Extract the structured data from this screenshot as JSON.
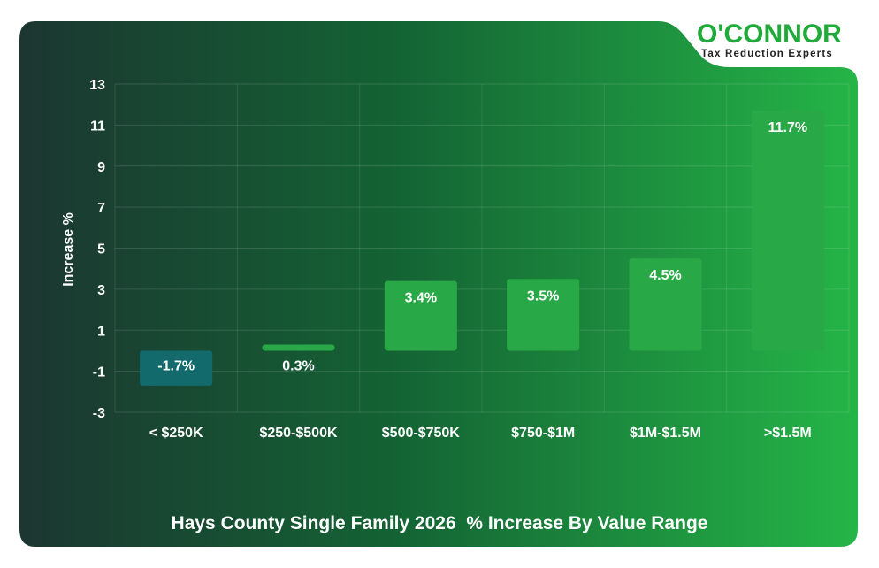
{
  "brand": {
    "name_part1": "O'C",
    "name_part2": "NNOR",
    "tagline": "Tax Reduction Experts",
    "color": "#1faa3a"
  },
  "colors": {
    "bg_dark": "#1d3a33",
    "bg_mid": "#13673a",
    "bg_light": "#24b347",
    "bar_positive": "#29a847",
    "bar_negative": "#136a6c",
    "text": "#ffffff"
  },
  "chart_data": {
    "type": "bar",
    "title": "Hays County Single Family 2026  % Increase By Value Range",
    "xlabel": "",
    "ylabel": "Increase %",
    "categories": [
      "< $250K",
      "$250-$500K",
      "$500-$750K",
      "$750-$1M",
      "$1M-$1.5M",
      ">$1.5M"
    ],
    "values": [
      -1.7,
      0.3,
      3.4,
      3.5,
      4.5,
      11.7
    ],
    "data_labels": [
      "-1.7%",
      "0.3%",
      "3.4%",
      "3.5%",
      "4.5%",
      "11.7%"
    ],
    "ylim": [
      -3,
      13
    ],
    "yticks": [
      13,
      11,
      9,
      7,
      5,
      3,
      1,
      -1,
      -3
    ],
    "grid": true,
    "legend": "none"
  }
}
